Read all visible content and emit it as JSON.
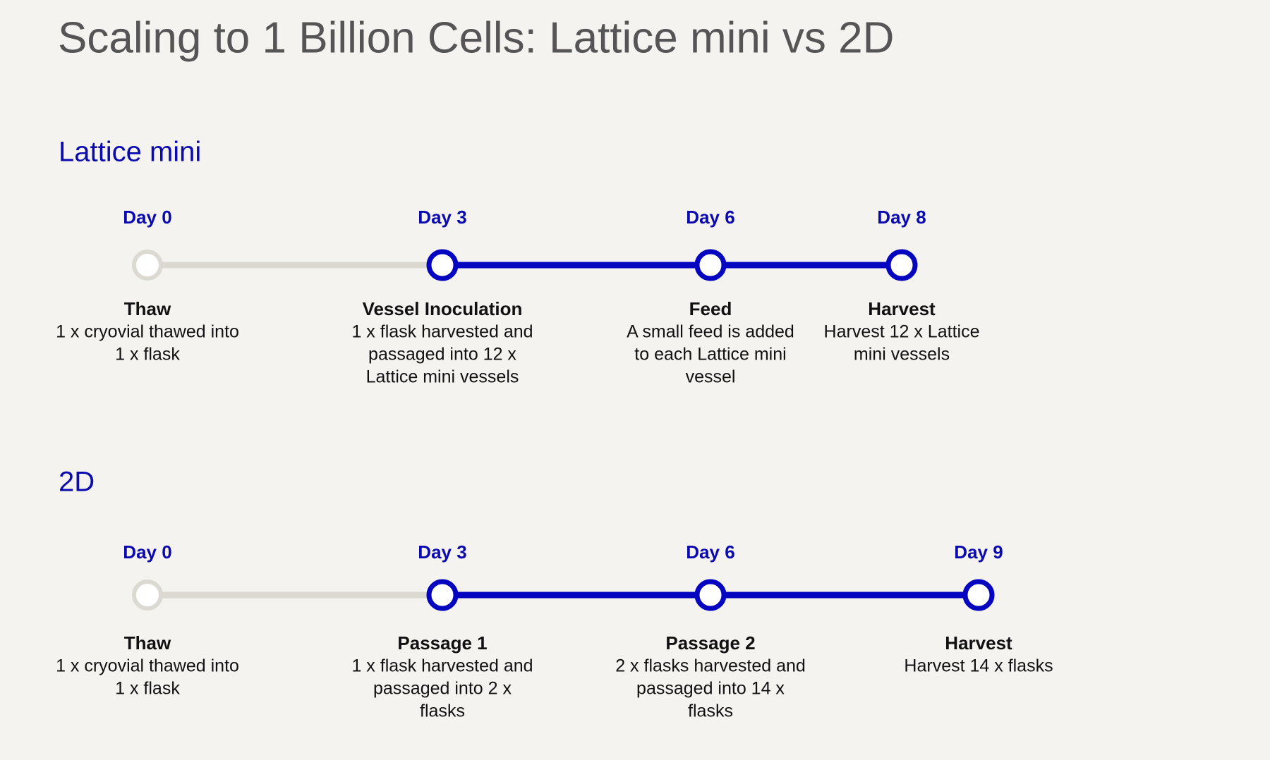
{
  "title": "Scaling to 1 Billion Cells: Lattice mini vs 2D",
  "timelines": [
    {
      "label": "Lattice mini",
      "steps": [
        {
          "day": "Day 0",
          "title": "Thaw",
          "lines": [
            "1 x cryovial thawed into",
            "1 x flask"
          ]
        },
        {
          "day": "Day 3",
          "title": "Vessel Inoculation",
          "lines": [
            "1 x flask harvested and",
            "passaged into 12 x",
            "Lattice mini vessels"
          ]
        },
        {
          "day": "Day 6",
          "title": "Feed",
          "lines": [
            "A small feed is added",
            "to each Lattice mini",
            "vessel"
          ]
        },
        {
          "day": "Day 8",
          "title": "Harvest",
          "lines": [
            "Harvest 12 x Lattice",
            "mini vessels"
          ]
        }
      ]
    },
    {
      "label": "2D",
      "steps": [
        {
          "day": "Day 0",
          "title": "Thaw",
          "lines": [
            "1 x cryovial thawed into",
            "1 x flask"
          ]
        },
        {
          "day": "Day 3",
          "title": "Passage 1",
          "lines": [
            "1 x  flask harvested and",
            "passaged into 2 x",
            "flasks"
          ]
        },
        {
          "day": "Day 6",
          "title": "Passage 2",
          "lines": [
            "2 x flasks harvested and",
            "passaged into 14 x",
            "flasks"
          ]
        },
        {
          "day": "Day 9",
          "title": "Harvest",
          "lines": [
            "Harvest 14 x flasks"
          ]
        }
      ]
    }
  ]
}
